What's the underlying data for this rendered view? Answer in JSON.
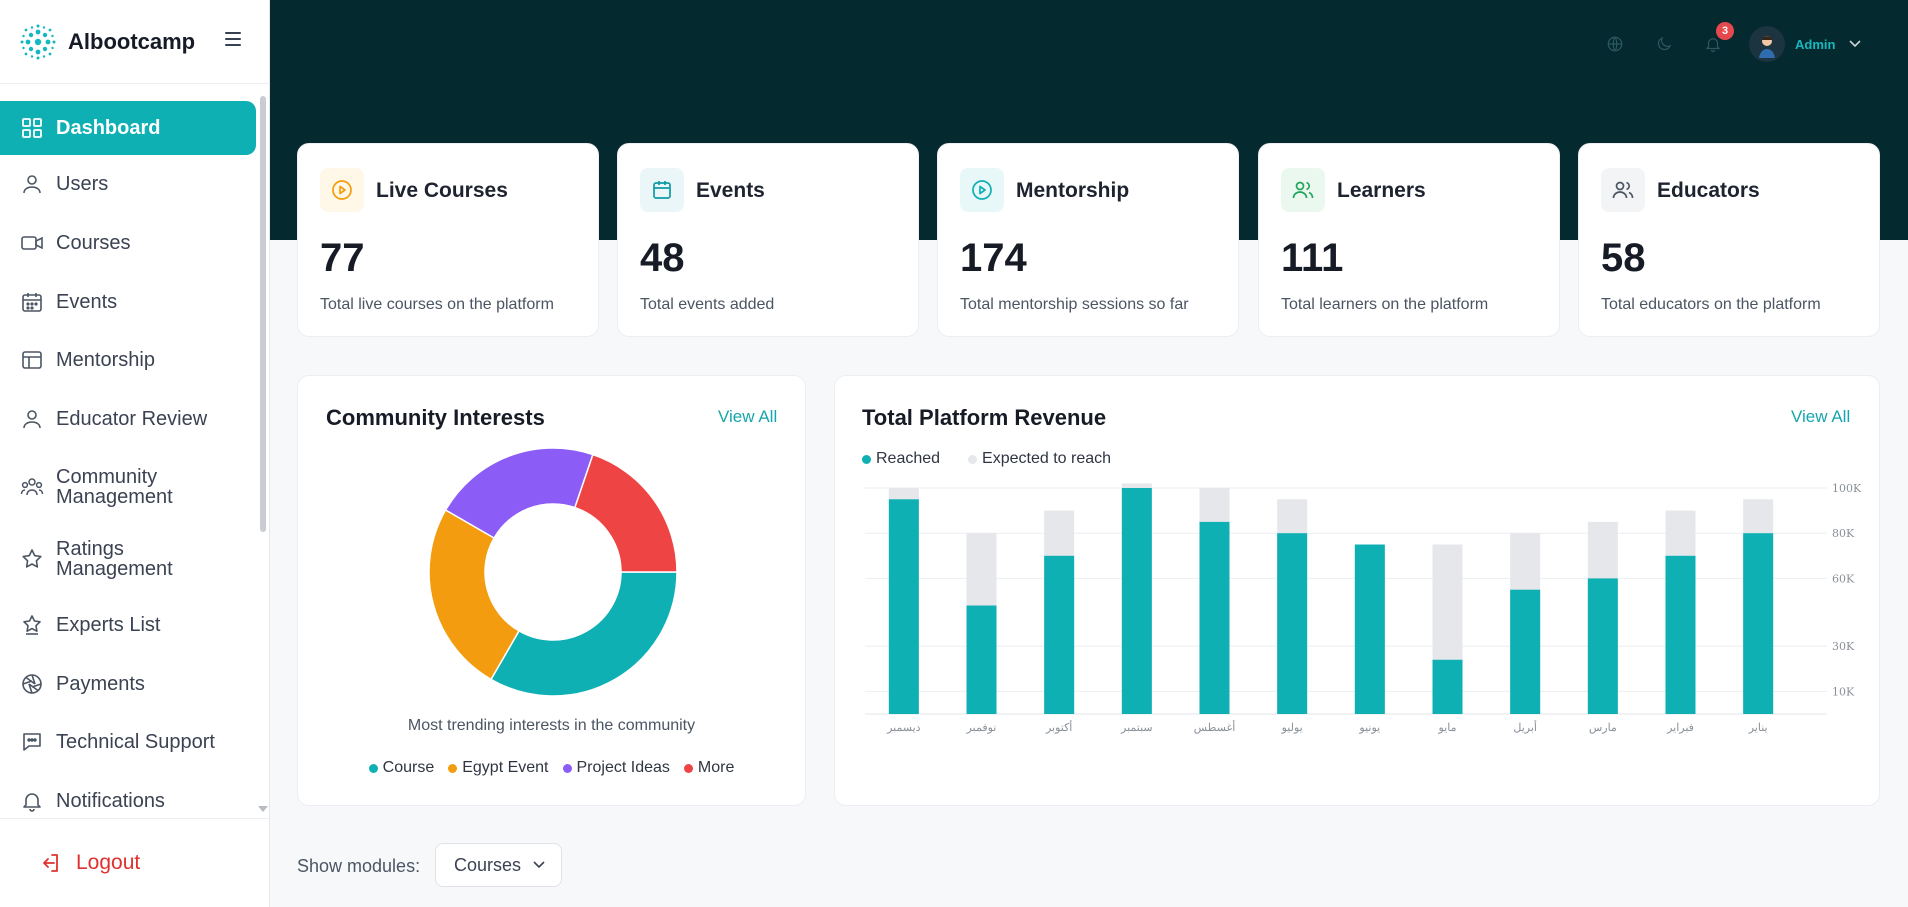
{
  "brand": {
    "name": "Albootcamp"
  },
  "sidebar": {
    "items": [
      {
        "label": "Dashboard",
        "icon": "grid-icon"
      },
      {
        "label": "Users",
        "icon": "user-icon"
      },
      {
        "label": "Courses",
        "icon": "video-icon"
      },
      {
        "label": "Events",
        "icon": "calendar-icon"
      },
      {
        "label": "Mentorship",
        "icon": "layout-icon"
      },
      {
        "label": "Educator Review",
        "icon": "user-icon"
      },
      {
        "label": "Community Management",
        "icon": "users-icon"
      },
      {
        "label": "Ratings Management",
        "icon": "star-icon"
      },
      {
        "label": "Experts List",
        "icon": "badge-star-icon"
      },
      {
        "label": "Payments",
        "icon": "aperture-icon"
      },
      {
        "label": "Technical Support",
        "icon": "message-icon"
      },
      {
        "label": "Notifications",
        "icon": "bell-icon"
      }
    ],
    "logout_label": "Logout"
  },
  "header": {
    "notification_count": "3",
    "user_label": "Admin"
  },
  "stats": [
    {
      "title": "Live Courses",
      "value": "77",
      "desc": "Total live courses on the platform",
      "color": "#f59e0b"
    },
    {
      "title": "Events",
      "value": "48",
      "desc": "Total events added",
      "color": "#0e9aa7"
    },
    {
      "title": "Mentorship",
      "value": "174",
      "desc": "Total mentorship sessions so far",
      "color": "#0fb0b4"
    },
    {
      "title": "Learners",
      "value": "111",
      "desc": "Total learners on the platform",
      "color": "#22a55b"
    },
    {
      "title": "Educators",
      "value": "58",
      "desc": "Total educators on the platform",
      "color": "#4b5563"
    }
  ],
  "community": {
    "title": "Community Interests",
    "view_all": "View All",
    "caption": "Most trending interests in the community"
  },
  "revenue": {
    "title": "Total Platform Revenue",
    "view_all": "View All"
  },
  "modules": {
    "label": "Show modules:",
    "selected": "Courses"
  },
  "chart_data": [
    {
      "type": "pie",
      "labels": [
        "Course",
        "Egypt Event",
        "Project Ideas",
        "More"
      ],
      "values": [
        32,
        24,
        21,
        19
      ],
      "colors": [
        "#0fb0b4",
        "#f39c0f",
        "#8b5cf6",
        "#ef4444"
      ]
    },
    {
      "type": "bar",
      "categories": [
        "ديسمبر",
        "نوفمبر",
        "أكتوبر",
        "سبتمبر",
        "أغسطس",
        "يوليو",
        "يونيو",
        "مايو",
        "أبريل",
        "مارس",
        "فبراير",
        "يناير"
      ],
      "series": [
        {
          "name": "Reached",
          "values": [
            95,
            48,
            70,
            100,
            85,
            80,
            75,
            24,
            55,
            60,
            70,
            80
          ],
          "color": "#0fb0b4"
        },
        {
          "name": "Expected to reach",
          "values": [
            100,
            80,
            90,
            102,
            100,
            95,
            75,
            75,
            80,
            85,
            90,
            95
          ],
          "color": "#e6e7ea"
        }
      ],
      "yticks": [
        "100K",
        "80K",
        "60K",
        "30K",
        "10K"
      ],
      "ytick_values": [
        100,
        80,
        60,
        30,
        10
      ],
      "ylim": [
        0,
        100
      ]
    }
  ]
}
